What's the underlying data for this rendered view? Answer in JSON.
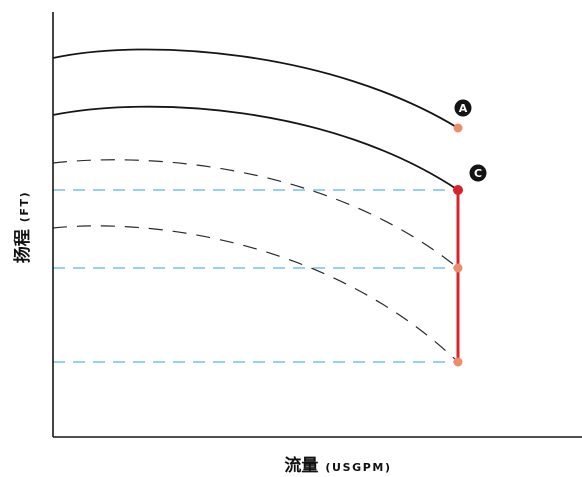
{
  "chart_data": {
    "type": "line",
    "xlabel": "流量",
    "xlabel_unit": "(USGPM)",
    "ylabel": "扬程",
    "ylabel_unit": "(FT)",
    "grid": false,
    "annotations": [
      "A",
      "C"
    ]
  },
  "colors": {
    "axis": "#151515",
    "solid_curve": "#151515",
    "dashed_curve": "#2a2a2a",
    "guide_line": "#58b7e8",
    "vertical_segment": "#d8232a",
    "point": "#ee8b6b",
    "highlight_point": "#d8232a",
    "marker_fill": "#141414"
  }
}
